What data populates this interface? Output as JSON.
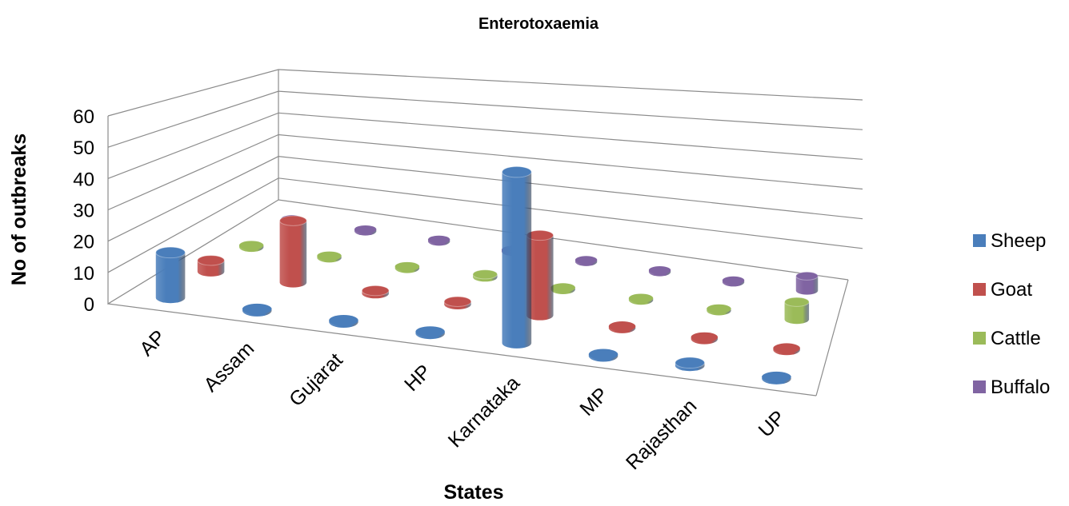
{
  "chart_data": {
    "type": "bar",
    "subtype": "3d-cylinder",
    "title": "Enterotoxaemia",
    "xlabel": "States",
    "ylabel": "No of outbreaks",
    "ylim": [
      0,
      60
    ],
    "yticks": [
      "0",
      "10",
      "20",
      "30",
      "40",
      "50",
      "60"
    ],
    "categories": [
      "AP",
      "Assam",
      "Gujarat",
      "HP",
      "Karnataka",
      "MP",
      "Rajasthan",
      "UP"
    ],
    "series": [
      {
        "name": "Sheep",
        "color": "#4a7ebb",
        "values": [
          15,
          0,
          0,
          0,
          58,
          0,
          1,
          0
        ]
      },
      {
        "name": "Goat",
        "color": "#c0504d",
        "values": [
          4,
          22,
          1,
          1,
          28,
          0,
          0,
          0
        ]
      },
      {
        "name": "Cattle",
        "color": "#9bbb59",
        "values": [
          0,
          0,
          0,
          1,
          0,
          0,
          0,
          6
        ]
      },
      {
        "name": "Buffalo",
        "color": "#8064a2",
        "values": [
          0,
          0,
          0,
          0,
          0,
          0,
          0,
          5
        ]
      }
    ],
    "grid": true,
    "legend_position": "right"
  }
}
